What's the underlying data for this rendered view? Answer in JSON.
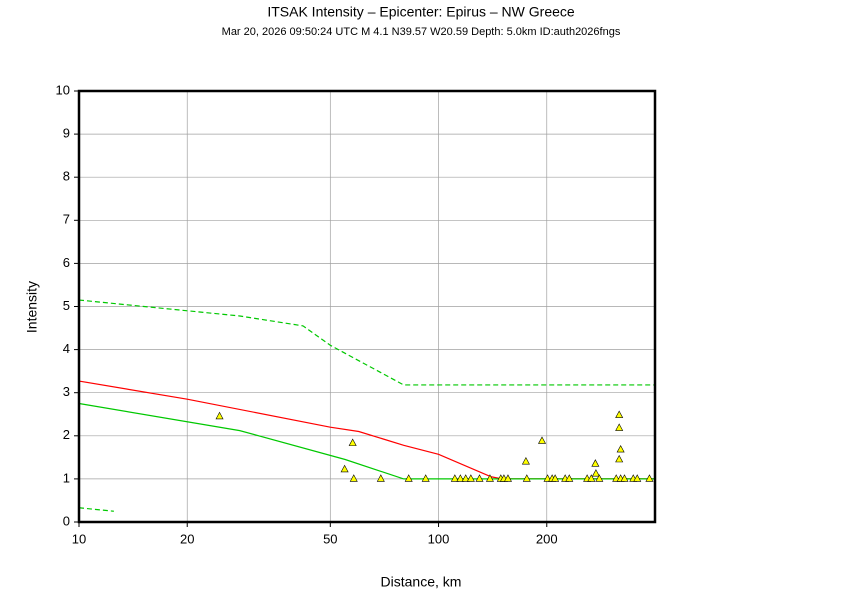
{
  "chart_data": {
    "type": "line",
    "title": "ITSAK Intensity –  Epicenter: Epirus – NW Greece",
    "subtitle": "Mar 20, 2026 09:50:24 UTC   M 4.1   N39.57 W20.59   Depth: 5.0km   ID:auth2026fngs",
    "xlabel": "Distance, km",
    "ylabel": "Intensity",
    "xscale": "log",
    "xlim": [
      10,
      400
    ],
    "ylim": [
      0,
      10
    ],
    "xticks": [
      10,
      20,
      50,
      100,
      200
    ],
    "yticks": [
      0,
      1,
      2,
      3,
      4,
      5,
      6,
      7,
      8,
      9,
      10
    ],
    "grid": true,
    "series": [
      {
        "type": "line",
        "color": "#00c800",
        "dashed": true,
        "x": [
          10,
          28,
          42,
          50,
          80,
          400
        ],
        "values": [
          5.15,
          4.78,
          4.55,
          4.1,
          3.18,
          3.18
        ]
      },
      {
        "type": "line",
        "color": "#ff0000",
        "dashed": false,
        "x": [
          10,
          20,
          50,
          60,
          80,
          100,
          140,
          150,
          400
        ],
        "values": [
          3.27,
          2.85,
          2.2,
          2.1,
          1.78,
          1.57,
          1.05,
          1.0,
          1.0
        ]
      },
      {
        "type": "line",
        "color": "#00c800",
        "dashed": false,
        "x": [
          10,
          28,
          55,
          80,
          400
        ],
        "values": [
          2.75,
          2.12,
          1.45,
          1.0,
          1.0
        ]
      },
      {
        "type": "line",
        "color": "#00c800",
        "dashed": true,
        "x": [
          10,
          12.5
        ],
        "values": [
          0.33,
          0.25
        ]
      },
      {
        "type": "scatter",
        "color": "#ffff00",
        "marker": "triangle",
        "x": [
          24.6,
          54.8,
          57.7,
          58.1,
          69.1,
          82.6,
          92.1,
          111,
          115,
          119,
          123,
          130,
          139,
          149,
          152,
          156,
          175,
          176,
          194,
          201,
          207,
          211,
          225,
          231,
          259,
          266,
          273,
          274,
          280,
          312,
          318,
          318,
          321,
          318,
          321,
          329,
          348,
          357,
          386
        ],
        "values": [
          2.45,
          1.22,
          1.83,
          1.0,
          1.0,
          1.0,
          1.0,
          1.0,
          1.0,
          1.0,
          1.0,
          1.0,
          1.0,
          1.0,
          1.0,
          1.0,
          1.4,
          1.0,
          1.88,
          1.0,
          1.0,
          1.0,
          1.0,
          1.0,
          1.0,
          1.0,
          1.35,
          1.12,
          1.0,
          1.0,
          2.48,
          2.18,
          1.68,
          1.45,
          1.0,
          1.0,
          1.0,
          1.0,
          1.0
        ]
      }
    ]
  }
}
